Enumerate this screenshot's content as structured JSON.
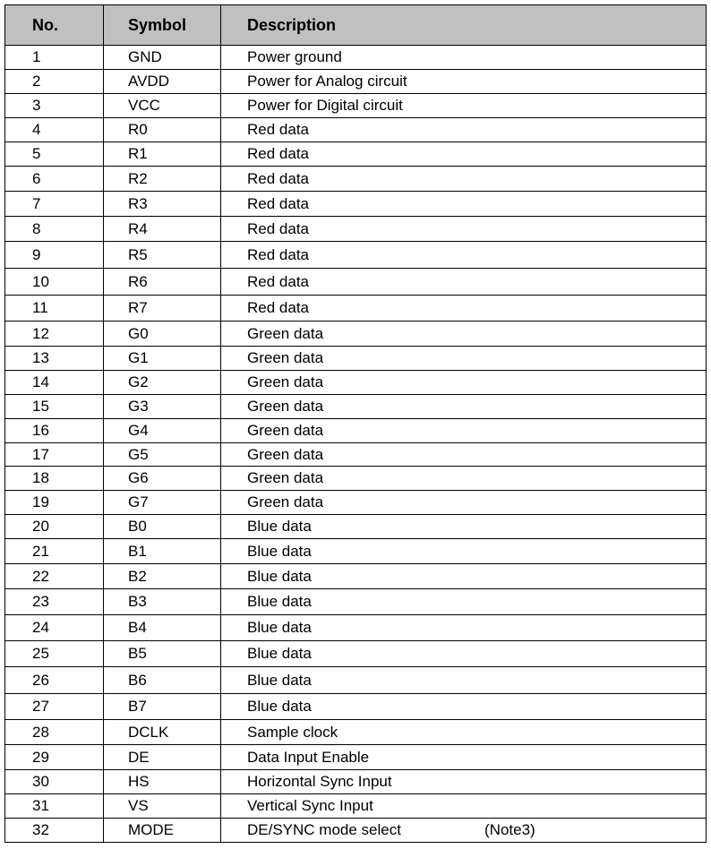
{
  "table": {
    "headers": {
      "no": "No.",
      "symbol": "Symbol",
      "description": "Description"
    },
    "rows": [
      {
        "no": "1",
        "symbol": "GND",
        "description": "Power ground"
      },
      {
        "no": "2",
        "symbol": "AVDD",
        "description": "Power for Analog circuit"
      },
      {
        "no": "3",
        "symbol": "VCC",
        "description": "Power for Digital circuit"
      },
      {
        "no": "4",
        "symbol": "R0",
        "description": "Red data"
      },
      {
        "no": "5",
        "symbol": "R1",
        "description": "Red data"
      },
      {
        "no": "6",
        "symbol": "R2",
        "description": "Red data"
      },
      {
        "no": "7",
        "symbol": "R3",
        "description": "Red data"
      },
      {
        "no": "8",
        "symbol": "R4",
        "description": "Red data"
      },
      {
        "no": "9",
        "symbol": "R5",
        "description": "Red data"
      },
      {
        "no": "10",
        "symbol": "R6",
        "description": "Red data"
      },
      {
        "no": "11",
        "symbol": "R7",
        "description": "Red data"
      },
      {
        "no": "12",
        "symbol": "G0",
        "description": "Green data"
      },
      {
        "no": "13",
        "symbol": "G1",
        "description": "Green data"
      },
      {
        "no": "14",
        "symbol": "G2",
        "description": "Green data"
      },
      {
        "no": "15",
        "symbol": "G3",
        "description": "Green data"
      },
      {
        "no": "16",
        "symbol": "G4",
        "description": "Green data"
      },
      {
        "no": "17",
        "symbol": "G5",
        "description": "Green data"
      },
      {
        "no": "18",
        "symbol": "G6",
        "description": "Green data"
      },
      {
        "no": "19",
        "symbol": "G7",
        "description": "Green data"
      },
      {
        "no": "20",
        "symbol": "B0",
        "description": "Blue data"
      },
      {
        "no": "21",
        "symbol": "B1",
        "description": "Blue data"
      },
      {
        "no": "22",
        "symbol": "B2",
        "description": "Blue data"
      },
      {
        "no": "23",
        "symbol": "B3",
        "description": "Blue data"
      },
      {
        "no": "24",
        "symbol": "B4",
        "description": "Blue data"
      },
      {
        "no": "25",
        "symbol": "B5",
        "description": "Blue data"
      },
      {
        "no": "26",
        "symbol": "B6",
        "description": "Blue data"
      },
      {
        "no": "27",
        "symbol": "B7",
        "description": "Blue data"
      },
      {
        "no": "28",
        "symbol": "DCLK",
        "description": "Sample clock"
      },
      {
        "no": "29",
        "symbol": "DE",
        "description": "Data Input Enable"
      },
      {
        "no": "30",
        "symbol": "HS",
        "description": "Horizontal Sync Input"
      },
      {
        "no": "31",
        "symbol": "VS",
        "description": "Vertical Sync Input"
      },
      {
        "no": "32",
        "symbol": "MODE",
        "description": "DE/SYNC mode select",
        "note": "(Note3)"
      }
    ]
  }
}
